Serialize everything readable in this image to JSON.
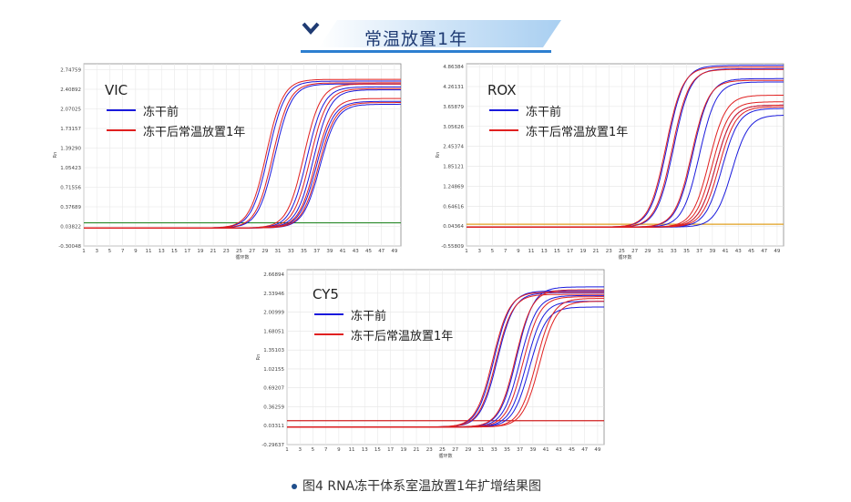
{
  "banner": {
    "title": "常温放置1年"
  },
  "caption": "图4 RNA冻干体系室温放置1年扩增结果图",
  "colors": {
    "before": "#1a1adc",
    "after": "#e02020",
    "vic_threshold": "#2a8a2a",
    "rox_threshold": "#e0a020",
    "cy5_threshold": "#d02020"
  },
  "chart_data": [
    {
      "type": "line",
      "title": "VIC",
      "legend": [
        "冻干前",
        "冻干后常温放置1年"
      ],
      "xlabel": "循环数",
      "ylabel": "Rn",
      "x_ticks": [
        "1",
        "3",
        "5",
        "7",
        "9",
        "11",
        "13",
        "15",
        "17",
        "19",
        "21",
        "23",
        "25",
        "27",
        "29",
        "31",
        "33",
        "35",
        "37",
        "39",
        "41",
        "43",
        "45",
        "47",
        "49"
      ],
      "y_ticks": [
        "-0.30048",
        "0.03822",
        "0.37689",
        "0.71556",
        "1.05423",
        "1.39290",
        "1.73157",
        "2.07025",
        "2.40892",
        "2.74759"
      ],
      "ylim": [
        -0.30048,
        2.85
      ],
      "xlim": [
        1,
        50
      ],
      "threshold": 0.1,
      "series": [
        {
          "name": "冻干前",
          "curves": [
            [
              29.5,
              2.55
            ],
            [
              30.5,
              2.5
            ],
            [
              35.5,
              2.45
            ],
            [
              36.5,
              2.4
            ],
            [
              37,
              2.2
            ],
            [
              37.5,
              2.15
            ]
          ]
        },
        {
          "name": "冻干后常温放置1年",
          "curves": [
            [
              29.2,
              2.58
            ],
            [
              30.2,
              2.52
            ],
            [
              35,
              2.5
            ],
            [
              36,
              2.42
            ],
            [
              36.8,
              2.25
            ],
            [
              37.3,
              2.18
            ]
          ]
        }
      ]
    },
    {
      "type": "line",
      "title": "ROX",
      "legend": [
        "冻干前",
        "冻干后常温放置1年"
      ],
      "xlabel": "循环数",
      "ylabel": "Rn",
      "x_ticks": [
        "1",
        "3",
        "5",
        "7",
        "9",
        "11",
        "13",
        "15",
        "17",
        "19",
        "21",
        "23",
        "25",
        "27",
        "29",
        "31",
        "33",
        "35",
        "37",
        "39",
        "41",
        "43",
        "45",
        "47",
        "49"
      ],
      "y_ticks": [
        "-0.55809",
        "0.04364",
        "0.64616",
        "1.24869",
        "1.85121",
        "2.45374",
        "3.05626",
        "3.65879",
        "4.26131",
        "4.86384"
      ],
      "ylim": [
        -0.55809,
        4.95
      ],
      "xlim": [
        1,
        50
      ],
      "threshold": 0.1,
      "series": [
        {
          "name": "冻干前",
          "curves": [
            [
              32,
              4.9
            ],
            [
              33,
              4.8
            ],
            [
              36,
              4.5
            ],
            [
              37,
              4.4
            ],
            [
              39.5,
              3.7
            ],
            [
              40.5,
              3.6
            ],
            [
              42,
              3.4
            ]
          ]
        },
        {
          "name": "冻干后常温放置1年",
          "curves": [
            [
              31.8,
              4.85
            ],
            [
              32.8,
              4.78
            ],
            [
              35.8,
              4.45
            ],
            [
              38.5,
              4.0
            ],
            [
              39,
              3.8
            ],
            [
              39.5,
              3.7
            ],
            [
              40,
              3.65
            ]
          ]
        }
      ]
    },
    {
      "type": "line",
      "title": "CY5",
      "legend": [
        "冻干前",
        "冻干后常温放置1年"
      ],
      "xlabel": "循环数",
      "ylabel": "Rn",
      "x_ticks": [
        "1",
        "3",
        "5",
        "7",
        "9",
        "11",
        "13",
        "15",
        "17",
        "19",
        "21",
        "23",
        "25",
        "27",
        "29",
        "31",
        "33",
        "35",
        "37",
        "39",
        "41",
        "43",
        "45",
        "47",
        "49"
      ],
      "y_ticks": [
        "-0.29637",
        "0.03311",
        "0.36259",
        "0.69207",
        "1.02155",
        "1.35103",
        "1.68051",
        "2.00999",
        "2.33946",
        "2.66894"
      ],
      "ylim": [
        -0.29637,
        2.75
      ],
      "xlim": [
        1,
        50
      ],
      "threshold": 0.12,
      "series": [
        {
          "name": "冻干前",
          "curves": [
            [
              33,
              2.38
            ],
            [
              33.5,
              2.35
            ],
            [
              36.5,
              2.45
            ],
            [
              37,
              2.3
            ],
            [
              38,
              2.2
            ],
            [
              38.5,
              2.1
            ]
          ]
        },
        {
          "name": "冻干后常温放置1年",
          "curves": [
            [
              32.8,
              2.36
            ],
            [
              33.3,
              2.32
            ],
            [
              36.3,
              2.4
            ],
            [
              37.5,
              2.28
            ],
            [
              39.5,
              2.25
            ],
            [
              40,
              2.2
            ]
          ]
        }
      ]
    }
  ]
}
